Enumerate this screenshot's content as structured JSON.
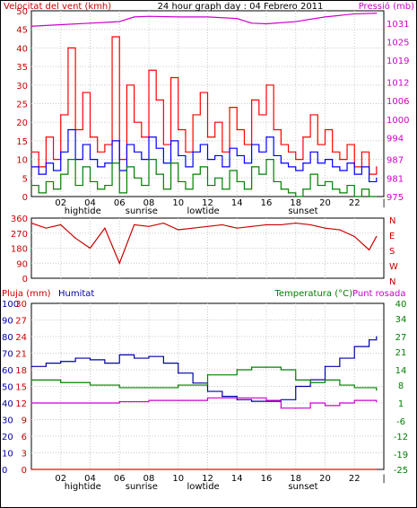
{
  "chart_data": [
    {
      "type": "line",
      "title": "24 hour graph day : 04 Febrero 2011",
      "ylabel_left": "Velocitat del vent (kmh)",
      "ylabel_right": "Pressió (mb)",
      "ylim": [
        0,
        50
      ],
      "yticks": [
        "0",
        "5",
        "10",
        "15",
        "20",
        "25",
        "30",
        "35",
        "40",
        "45",
        "50"
      ],
      "y2ticks": [
        "975",
        "981",
        "987",
        "994",
        "1000",
        "1006",
        "1012",
        "1019",
        "1025",
        "1031"
      ],
      "y2lim": [
        975,
        1035
      ],
      "xticks": [
        "02",
        "04",
        "06",
        "08",
        "10",
        "12",
        "14",
        "16",
        "18",
        "20",
        "22",
        "|"
      ],
      "x_events": [
        "hightide",
        "sunrise",
        "lowtide",
        "sunset"
      ],
      "x_event_hours": [
        3.5,
        7.5,
        11.7,
        18.5
      ],
      "colors": {
        "gust": "#ff0000",
        "avg": "#0000ff",
        "min": "#008000",
        "pressure": "#cc00cc"
      },
      "series": [
        {
          "name": "gust",
          "x": [
            0,
            0.5,
            1,
            1.5,
            2,
            2.5,
            3,
            3.5,
            4,
            4.5,
            5,
            5.5,
            6,
            6.5,
            7,
            7.5,
            8,
            8.5,
            9,
            9.5,
            10,
            10.5,
            11,
            11.5,
            12,
            12.5,
            13,
            13.5,
            14,
            14.5,
            15,
            15.5,
            16,
            16.5,
            17,
            17.5,
            18,
            18.5,
            19,
            19.5,
            20,
            20.5,
            21,
            21.5,
            22,
            22.5,
            23,
            23.5
          ],
          "values": [
            12,
            8,
            16,
            10,
            22,
            40,
            18,
            28,
            16,
            12,
            14,
            43,
            10,
            30,
            20,
            16,
            34,
            26,
            14,
            32,
            18,
            12,
            22,
            28,
            16,
            20,
            12,
            24,
            18,
            14,
            26,
            22,
            30,
            18,
            14,
            12,
            10,
            16,
            22,
            14,
            18,
            12,
            10,
            14,
            8,
            12,
            6,
            8
          ]
        },
        {
          "name": "avg",
          "x": [
            0,
            0.5,
            1,
            1.5,
            2,
            2.5,
            3,
            3.5,
            4,
            4.5,
            5,
            5.5,
            6,
            6.5,
            7,
            7.5,
            8,
            8.5,
            9,
            9.5,
            10,
            10.5,
            11,
            11.5,
            12,
            12.5,
            13,
            13.5,
            14,
            14.5,
            15,
            15.5,
            16,
            16.5,
            17,
            17.5,
            18,
            18.5,
            19,
            19.5,
            20,
            20.5,
            21,
            21.5,
            22,
            22.5,
            23,
            23.5
          ],
          "values": [
            8,
            6,
            9,
            7,
            12,
            18,
            10,
            14,
            10,
            8,
            9,
            15,
            7,
            14,
            12,
            10,
            16,
            13,
            9,
            15,
            11,
            8,
            12,
            14,
            10,
            11,
            8,
            13,
            11,
            9,
            14,
            12,
            16,
            11,
            9,
            8,
            7,
            9,
            12,
            9,
            10,
            8,
            7,
            9,
            6,
            8,
            4,
            5
          ]
        },
        {
          "name": "min",
          "x": [
            0,
            0.5,
            1,
            1.5,
            2,
            2.5,
            3,
            3.5,
            4,
            4.5,
            5,
            5.5,
            6,
            6.5,
            7,
            7.5,
            8,
            8.5,
            9,
            9.5,
            10,
            10.5,
            11,
            11.5,
            12,
            12.5,
            13,
            13.5,
            14,
            14.5,
            15,
            15.5,
            16,
            16.5,
            17,
            17.5,
            18,
            18.5,
            19,
            19.5,
            20,
            20.5,
            21,
            21.5,
            22,
            22.5,
            23,
            23.5
          ],
          "values": [
            3,
            1,
            4,
            2,
            6,
            10,
            3,
            8,
            4,
            2,
            3,
            9,
            1,
            8,
            5,
            3,
            10,
            6,
            2,
            9,
            4,
            2,
            6,
            8,
            3,
            5,
            2,
            7,
            4,
            2,
            8,
            6,
            10,
            4,
            2,
            1,
            0,
            2,
            6,
            3,
            4,
            2,
            1,
            3,
            0,
            2,
            0,
            0
          ]
        },
        {
          "name": "pressure",
          "x": [
            0,
            2,
            4,
            6,
            7,
            8,
            10,
            12,
            14,
            15,
            16,
            18,
            20,
            22,
            23.5
          ],
          "values": [
            1030,
            1030.5,
            1031,
            1031.5,
            1033,
            1033.2,
            1033,
            1033,
            1032.5,
            1031,
            1030.8,
            1031.5,
            1033,
            1034,
            1034.2
          ]
        }
      ]
    },
    {
      "type": "line",
      "title": "",
      "ylim": [
        0,
        360
      ],
      "yticks": [
        "0",
        "90",
        "180",
        "270",
        "360"
      ],
      "y2ticks": [
        "N",
        "E",
        "S",
        "W",
        "N"
      ],
      "xticks": [],
      "colors": {
        "dir": "#cc0000"
      },
      "series": [
        {
          "name": "direction",
          "x": [
            0,
            1,
            2,
            3,
            4,
            5,
            6,
            7,
            8,
            9,
            10,
            11,
            12,
            13,
            14,
            15,
            16,
            17,
            18,
            19,
            20,
            21,
            22,
            23,
            23.5
          ],
          "values": [
            330,
            300,
            320,
            240,
            180,
            300,
            90,
            320,
            310,
            330,
            290,
            300,
            310,
            320,
            300,
            310,
            320,
            320,
            330,
            320,
            300,
            290,
            250,
            170,
            250
          ]
        }
      ]
    },
    {
      "type": "line",
      "title": "",
      "ylabel_left": "Pluja (mm)",
      "ylabel_left2": "Humitat",
      "ylabel_right": "Temperatura (°C)",
      "ylabel_right2": "Punt rosada",
      "ylim": [
        0,
        100
      ],
      "yticks": [
        "0",
        "10",
        "20",
        "30",
        "40",
        "50",
        "60",
        "70",
        "80",
        "90",
        "100"
      ],
      "yticks2": [
        "0",
        "3",
        "6",
        "9",
        "12",
        "15",
        "18",
        "21",
        "24",
        "27",
        "30"
      ],
      "y2ticks": [
        "-25",
        "-19",
        "-12",
        "-6",
        "1",
        "8",
        "14",
        "21",
        "27",
        "34",
        "40"
      ],
      "y2lim": [
        -25,
        40
      ],
      "xticks": [
        "02",
        "04",
        "06",
        "08",
        "10",
        "12",
        "14",
        "16",
        "18",
        "20",
        "22",
        "|"
      ],
      "x_events": [
        "hightide",
        "sunrise",
        "lowtide",
        "sunset"
      ],
      "x_event_hours": [
        3.5,
        7.5,
        11.7,
        18.5
      ],
      "colors": {
        "rain": "#ff0000",
        "humidity": "#0000aa",
        "temperature": "#008000",
        "dewpoint": "#cc00cc"
      },
      "series": [
        {
          "name": "rain",
          "x": [
            0,
            23.5
          ],
          "values": [
            0,
            0
          ]
        },
        {
          "name": "humidity",
          "x": [
            0,
            1,
            2,
            3,
            4,
            5,
            6,
            7,
            8,
            9,
            10,
            11,
            12,
            13,
            14,
            15,
            16,
            17,
            18,
            19,
            20,
            21,
            22,
            23,
            23.5
          ],
          "values": [
            62,
            64,
            65,
            67,
            66,
            64,
            69,
            67,
            68,
            64,
            58,
            52,
            47,
            44,
            42,
            41,
            41,
            42,
            50,
            54,
            62,
            67,
            74,
            78,
            80
          ]
        },
        {
          "name": "temperature",
          "x": [
            0,
            2,
            4,
            6,
            8,
            10,
            12,
            14,
            15,
            16,
            17,
            18,
            19,
            20,
            21,
            22,
            23.5
          ],
          "values": [
            10,
            9,
            8,
            7,
            7,
            8,
            12,
            14,
            15,
            15,
            14,
            10,
            9,
            10,
            8,
            7,
            6
          ]
        },
        {
          "name": "dewpoint",
          "x": [
            0,
            2,
            4,
            6,
            8,
            10,
            12,
            14,
            16,
            17,
            18,
            19,
            20,
            21,
            22,
            23.5
          ],
          "values": [
            1,
            1,
            1,
            1.5,
            2,
            2,
            3,
            3,
            2,
            -1,
            -1,
            1,
            0,
            1,
            2,
            1.5
          ]
        }
      ]
    }
  ]
}
